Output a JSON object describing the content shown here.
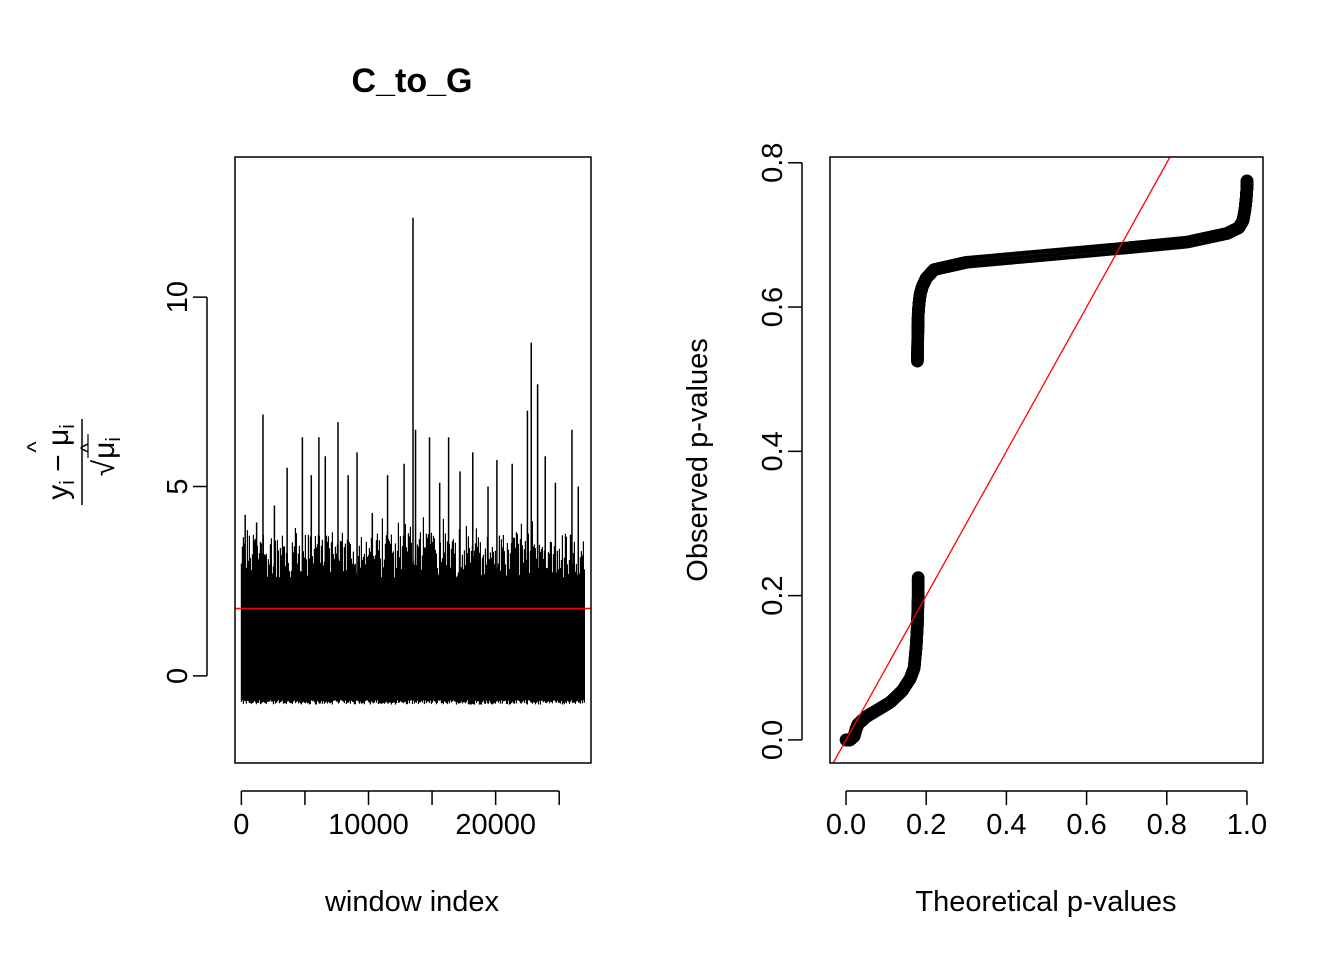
{
  "chart_data": [
    {
      "type": "line",
      "title": "C_to_G",
      "xlabel": "window index",
      "ylabel": "(y_i − μ̂_i) / √μ̂_i",
      "xlim": [
        -500,
        27500
      ],
      "ylim": [
        -2.3,
        13.7
      ],
      "x_ticks": [
        0,
        10000,
        20000
      ],
      "x_tick_labels": [
        "0",
        "10000",
        "20000"
      ],
      "y_ticks": [
        0,
        5,
        10
      ],
      "y_tick_labels": [
        "0",
        "5",
        "10"
      ],
      "n_points": 27000,
      "baseline_band": {
        "min": -0.7,
        "typical_max": 3.8
      },
      "spikes": [
        {
          "x": 300,
          "y": 4.25
        },
        {
          "x": 1200,
          "y": 4.05
        },
        {
          "x": 1700,
          "y": 6.9
        },
        {
          "x": 2600,
          "y": 4.5
        },
        {
          "x": 3600,
          "y": 5.5
        },
        {
          "x": 4800,
          "y": 6.3
        },
        {
          "x": 5500,
          "y": 5.3
        },
        {
          "x": 6100,
          "y": 6.3
        },
        {
          "x": 6600,
          "y": 5.8
        },
        {
          "x": 7600,
          "y": 6.7
        },
        {
          "x": 8400,
          "y": 5.3
        },
        {
          "x": 9100,
          "y": 5.9
        },
        {
          "x": 10300,
          "y": 4.3
        },
        {
          "x": 11500,
          "y": 5.3
        },
        {
          "x": 12800,
          "y": 5.6
        },
        {
          "x": 13500,
          "y": 12.1
        },
        {
          "x": 13700,
          "y": 6.5
        },
        {
          "x": 14800,
          "y": 6.3
        },
        {
          "x": 15600,
          "y": 5.1
        },
        {
          "x": 16300,
          "y": 6.3
        },
        {
          "x": 17200,
          "y": 5.4
        },
        {
          "x": 18200,
          "y": 5.9
        },
        {
          "x": 19400,
          "y": 5.0
        },
        {
          "x": 20100,
          "y": 5.7
        },
        {
          "x": 21300,
          "y": 5.6
        },
        {
          "x": 22500,
          "y": 7.0
        },
        {
          "x": 22800,
          "y": 8.8
        },
        {
          "x": 23300,
          "y": 7.7
        },
        {
          "x": 23900,
          "y": 5.8
        },
        {
          "x": 24700,
          "y": 5.1
        },
        {
          "x": 26000,
          "y": 6.5
        },
        {
          "x": 26500,
          "y": 5.0
        }
      ],
      "reference_line": {
        "type": "hline",
        "y": 1.78,
        "color": "#ff0000"
      },
      "series_color": "#000000"
    },
    {
      "type": "scatter",
      "title": "",
      "xlabel": "Theoretical p-values",
      "ylabel": "Observed p-values",
      "xlim": [
        -0.04,
        1.04
      ],
      "ylim": [
        -0.032,
        0.808
      ],
      "x_ticks": [
        0.0,
        0.2,
        0.4,
        0.6,
        0.8,
        1.0
      ],
      "x_tick_labels": [
        "0.0",
        "0.2",
        "0.4",
        "0.6",
        "0.8",
        "1.0"
      ],
      "y_ticks": [
        0.0,
        0.2,
        0.4,
        0.6,
        0.8
      ],
      "y_tick_labels": [
        "0.0",
        "0.2",
        "0.4",
        "0.6",
        "0.8"
      ],
      "marker": "open-circle",
      "segments": [
        {
          "x": [
            0.0,
            0.01,
            0.02,
            0.025,
            0.03,
            0.05,
            0.08,
            0.11,
            0.14,
            0.16,
            0.17,
            0.175,
            0.178,
            0.18,
            0.18
          ],
          "y": [
            0.0,
            0.0,
            0.005,
            0.015,
            0.022,
            0.032,
            0.042,
            0.052,
            0.068,
            0.085,
            0.1,
            0.13,
            0.16,
            0.2,
            0.225
          ]
        },
        {
          "x": [
            0.178,
            0.179,
            0.18,
            0.182,
            0.185,
            0.19,
            0.2,
            0.22,
            0.3,
            0.5,
            0.7,
            0.85,
            0.95,
            0.98,
            0.99,
            0.995,
            0.998,
            1.0,
            1.0
          ],
          "y": [
            0.525,
            0.56,
            0.59,
            0.605,
            0.618,
            0.628,
            0.64,
            0.652,
            0.662,
            0.672,
            0.682,
            0.69,
            0.702,
            0.71,
            0.72,
            0.735,
            0.75,
            0.765,
            0.775
          ]
        }
      ],
      "reference_line": {
        "type": "abline",
        "slope": 1,
        "intercept": 0,
        "color": "#ff0000"
      },
      "series_color": "#000000"
    }
  ]
}
